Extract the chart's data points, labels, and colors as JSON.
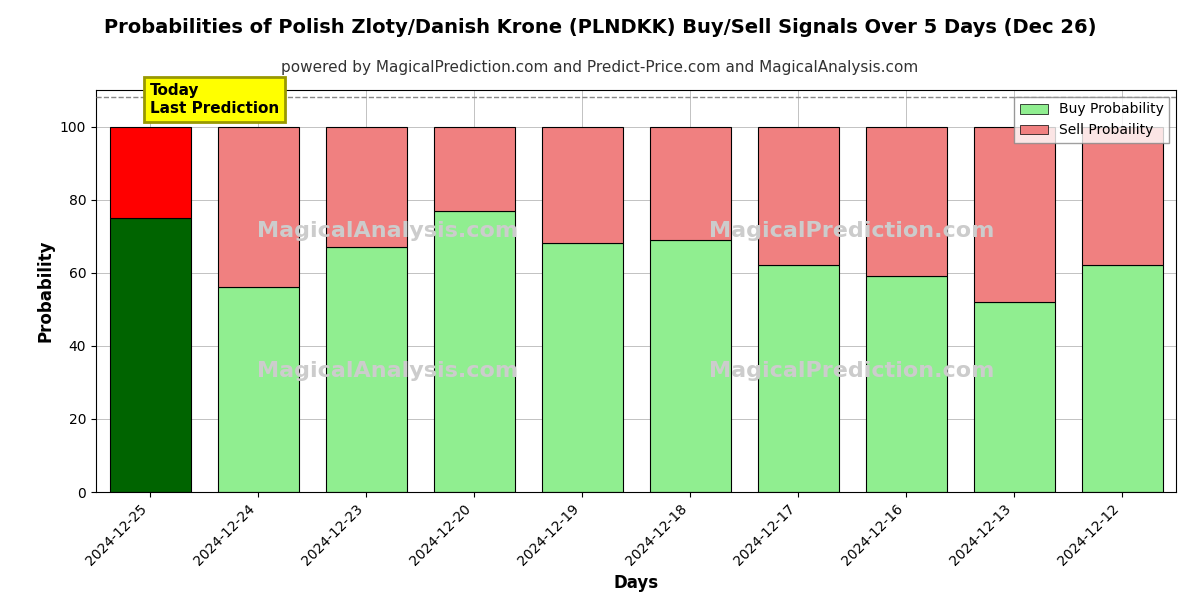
{
  "title": "Probabilities of Polish Zloty/Danish Krone (PLNDKK) Buy/Sell Signals Over 5 Days (Dec 26)",
  "subtitle": "powered by MagicalPrediction.com and Predict-Price.com and MagicalAnalysis.com",
  "xlabel": "Days",
  "ylabel": "Probability",
  "categories": [
    "2024-12-25",
    "2024-12-24",
    "2024-12-23",
    "2024-12-20",
    "2024-12-19",
    "2024-12-18",
    "2024-12-17",
    "2024-12-16",
    "2024-12-13",
    "2024-12-12"
  ],
  "buy_values": [
    75,
    56,
    67,
    77,
    68,
    69,
    62,
    59,
    52,
    62
  ],
  "sell_values": [
    25,
    44,
    33,
    23,
    32,
    31,
    38,
    41,
    48,
    38
  ],
  "today_bar_buy_color": "#006400",
  "today_bar_sell_color": "#FF0000",
  "other_bar_buy_color": "#90EE90",
  "other_bar_sell_color": "#F08080",
  "bar_edge_color": "#000000",
  "bar_edge_width": 0.8,
  "ylim": [
    0,
    110
  ],
  "yticks": [
    0,
    20,
    40,
    60,
    80,
    100
  ],
  "grid_color": "#aaaaaa",
  "grid_linestyle": "-",
  "grid_linewidth": 0.5,
  "dashed_line_y": 108,
  "dashed_line_color": "#888888",
  "dashed_line_style": "--",
  "legend_buy_label": "Buy Probability",
  "legend_sell_label": "Sell Probaility",
  "annotation_text": "Today\nLast Prediction",
  "annotation_bg_color": "#FFFF00",
  "annotation_border_color": "#CCCC00",
  "watermark_color": "#cccccc",
  "title_fontsize": 14,
  "subtitle_fontsize": 11,
  "axis_label_fontsize": 12,
  "tick_fontsize": 10,
  "figsize": [
    12.0,
    6.0
  ],
  "dpi": 100
}
